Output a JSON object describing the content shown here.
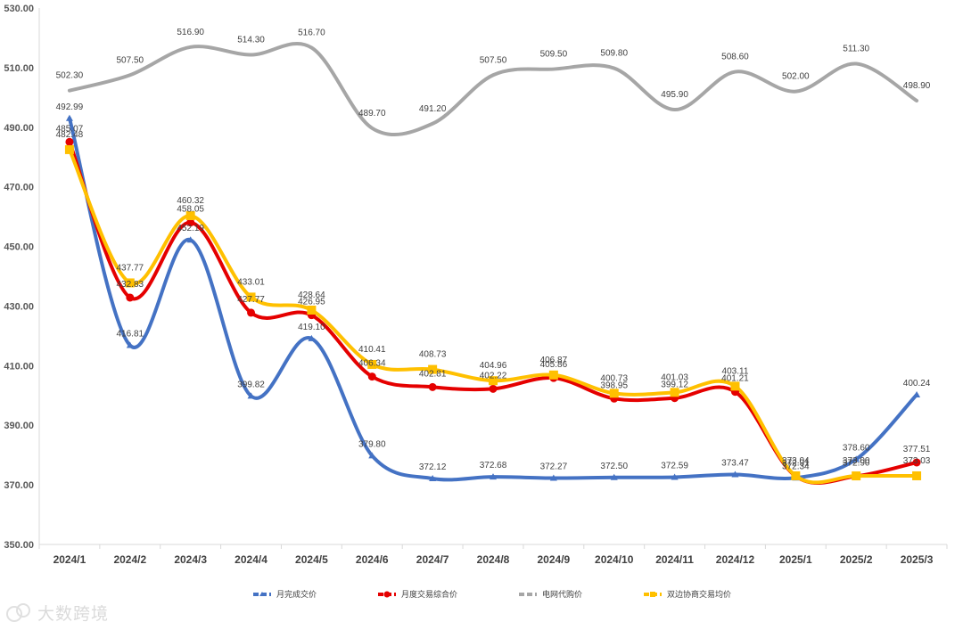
{
  "chart_data": {
    "type": "line",
    "title": "",
    "xlabel": "",
    "ylabel": "",
    "ylim": [
      350,
      530
    ],
    "y_ticks": [
      "350.00",
      "370.00",
      "390.00",
      "410.00",
      "430.00",
      "450.00",
      "470.00",
      "490.00",
      "510.00",
      "530.00"
    ],
    "categories": [
      "2024/1",
      "2024/2",
      "2024/3",
      "2024/4",
      "2024/5",
      "2024/6",
      "2024/7",
      "2024/8",
      "2024/9",
      "2024/10",
      "2024/11",
      "2024/12",
      "2025/1",
      "2025/2",
      "2025/3"
    ],
    "legend_position": "bottom",
    "series": [
      {
        "key": "s1",
        "name": "月完成交价",
        "color": "#4472C4",
        "marker": "triangle",
        "values": [
          492.99,
          416.81,
          452.19,
          399.82,
          419.1,
          379.8,
          372.12,
          372.68,
          372.27,
          372.5,
          372.59,
          373.47,
          372.34,
          378.6,
          400.24
        ],
        "labels": [
          "492.99",
          "416.81",
          "452.19",
          "399.82",
          "419.10",
          "379.80",
          "372.12",
          "372.68",
          "372.27",
          "372.50",
          "372.59",
          "373.47",
          "372.34",
          "378.60",
          "400.24"
        ]
      },
      {
        "key": "s2",
        "name": "月度交易综合价",
        "color": "#E50000",
        "marker": "circle",
        "values": [
          485.07,
          432.83,
          458.05,
          427.77,
          426.95,
          406.34,
          402.81,
          402.22,
          405.86,
          398.95,
          399.12,
          401.21,
          372.91,
          372.9,
          377.51
        ],
        "labels": [
          "485.07",
          "432.83",
          "458.05",
          "427.77",
          "426.95",
          "406.34",
          "402.81",
          "402.22",
          "405.86",
          "398.95",
          "399.12",
          "401.21",
          "372.91",
          "372.90",
          "377.51"
        ]
      },
      {
        "key": "s3",
        "name": "电网代购价",
        "color": "#A6A6A6",
        "marker": "none",
        "values": [
          502.3,
          507.5,
          516.9,
          514.3,
          516.7,
          489.7,
          491.2,
          507.5,
          509.5,
          509.8,
          495.9,
          508.6,
          502.0,
          511.3,
          498.9
        ],
        "labels": [
          "502.30",
          "507.50",
          "516.90",
          "514.30",
          "516.70",
          "489.70",
          "491.20",
          "507.50",
          "509.50",
          "509.80",
          "495.90",
          "508.60",
          "502.00",
          "511.30",
          "498.90"
        ]
      },
      {
        "key": "s4",
        "name": "双边协商交易均价",
        "color": "#FFC000",
        "marker": "square",
        "values": [
          482.48,
          437.77,
          460.32,
          433.01,
          428.64,
          410.41,
          408.73,
          404.96,
          406.87,
          400.73,
          401.03,
          403.11,
          373.04,
          373.0,
          373.03
        ],
        "labels": [
          "482.48",
          "437.77",
          "460.32",
          "433.01",
          "428.64",
          "410.41",
          "408.73",
          "404.96",
          "406.87",
          "400.73",
          "401.03",
          "403.11",
          "373.04",
          "373.00",
          "373.03"
        ]
      }
    ]
  },
  "watermark": {
    "text": "大数跨境"
  }
}
